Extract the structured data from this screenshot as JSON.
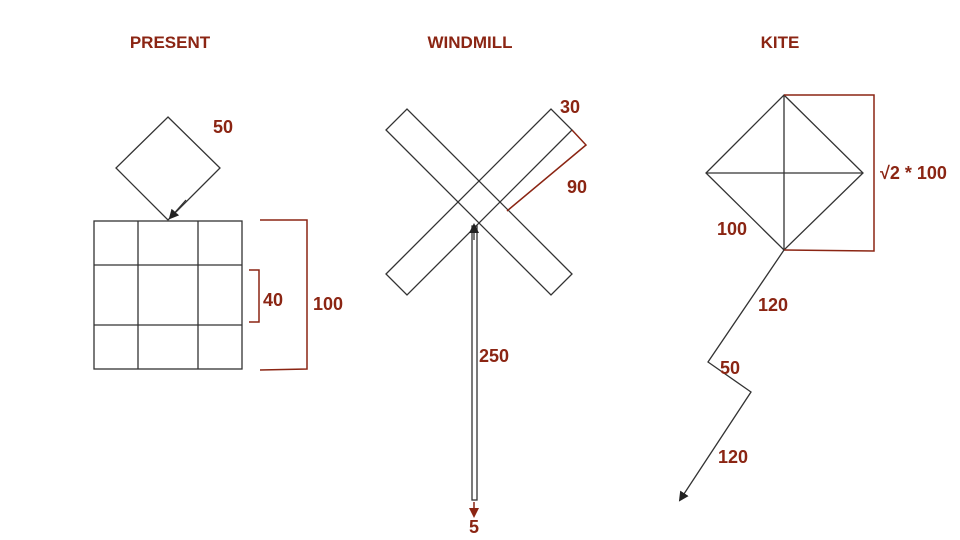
{
  "titles": {
    "present": "PRESENT",
    "windmill": "WINDMILL",
    "kite": "KITE"
  },
  "present": {
    "diamond_side_label": "50",
    "inner_box_label": "40",
    "outer_box_label": "100"
  },
  "windmill": {
    "blade_width_label": "30",
    "blade_half_length_label": "90",
    "stick_length_label": "250",
    "stick_width_label": "5"
  },
  "kite": {
    "diagonal_label": "√2 * 100",
    "side_label": "100",
    "tail_segment_1_label": "120",
    "tail_segment_2_label": "50",
    "tail_segment_3_label": "120"
  },
  "colors": {
    "annotation": "#8B2513",
    "line": "#333333"
  }
}
